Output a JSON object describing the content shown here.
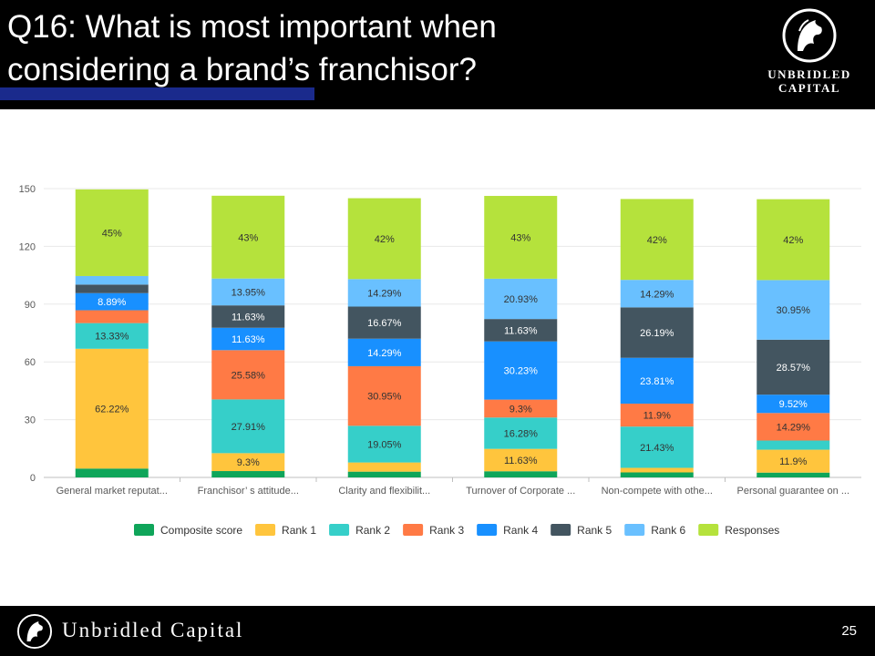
{
  "slide": {
    "title_line1": "Q16: What is most important when",
    "title_line2": "considering a brand’s franchisor?",
    "logo_line1": "UNBRIDLED",
    "logo_line2": "CAPITAL",
    "footer_brand": "Unbridled Capital",
    "page_number": "25"
  },
  "colors": {
    "Composite score": "#0fa55a",
    "Rank 1": "#ffc53d",
    "Rank 2": "#36cfc9",
    "Rank 3": "#ff7a45",
    "Rank 4": "#1890ff",
    "Rank 5": "#435560",
    "Rank 6": "#69c0ff",
    "Responses": "#b5e23c"
  },
  "chart_data": {
    "type": "bar",
    "stacked": true,
    "ylim": [
      0,
      150
    ],
    "yticks": [
      0,
      30,
      60,
      90,
      120,
      150
    ],
    "grid": true,
    "legend": "bottom",
    "categories": [
      "General market reputat...",
      "Franchisor’ s attitude...",
      "Clarity and flexibilit...",
      "Turnover of Corporate ...",
      "Non-compete with othe...",
      "Personal guarantee on ..."
    ],
    "series": [
      {
        "name": "Composite score",
        "values": [
          4.6,
          3.3,
          3.0,
          3.2,
          2.6,
          2.5
        ],
        "labels": [
          "",
          "",
          "",
          "",
          "",
          ""
        ]
      },
      {
        "name": "Rank 1",
        "values": [
          62.22,
          9.3,
          4.76,
          11.63,
          2.38,
          11.9
        ],
        "labels": [
          "62.22%",
          "9.3%",
          "",
          "11.63%",
          "",
          "11.9%"
        ]
      },
      {
        "name": "Rank 2",
        "values": [
          13.33,
          27.91,
          19.05,
          16.28,
          21.43,
          4.76
        ],
        "labels": [
          "13.33%",
          "27.91%",
          "19.05%",
          "16.28%",
          "21.43%",
          ""
        ]
      },
      {
        "name": "Rank 3",
        "values": [
          6.67,
          25.58,
          30.95,
          9.3,
          11.9,
          14.29
        ],
        "labels": [
          "",
          "25.58%",
          "30.95%",
          "9.3%",
          "11.9%",
          "14.29%"
        ]
      },
      {
        "name": "Rank 4",
        "values": [
          8.89,
          11.63,
          14.29,
          30.23,
          23.81,
          9.52
        ],
        "labels": [
          "8.89%",
          "11.63%",
          "14.29%",
          "30.23%",
          "23.81%",
          "9.52%"
        ]
      },
      {
        "name": "Rank 5",
        "values": [
          4.44,
          11.63,
          16.67,
          11.63,
          26.19,
          28.57
        ],
        "labels": [
          "",
          "11.63%",
          "16.67%",
          "11.63%",
          "26.19%",
          "28.57%"
        ]
      },
      {
        "name": "Rank 6",
        "values": [
          4.44,
          13.95,
          14.29,
          20.93,
          14.29,
          30.95
        ],
        "labels": [
          "",
          "13.95%",
          "14.29%",
          "20.93%",
          "14.29%",
          "30.95%"
        ]
      },
      {
        "name": "Responses",
        "values": [
          45,
          43,
          42,
          43,
          42,
          42
        ],
        "labels": [
          "45%",
          "43%",
          "42%",
          "43%",
          "42%",
          "42%"
        ]
      }
    ]
  }
}
